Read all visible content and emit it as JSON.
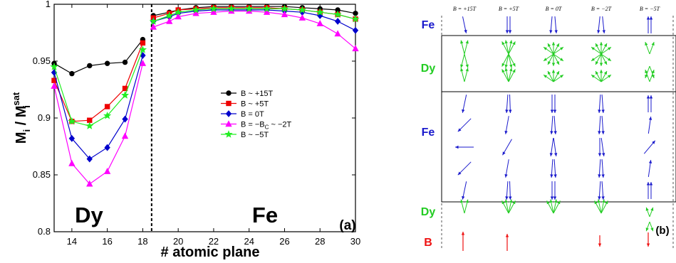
{
  "chart_data": [
    {
      "type": "line",
      "panel_label": "(a)",
      "xlabel": "# atomic plane",
      "ylabel_main": "M",
      "ylabel_sub": "i",
      "ylabel_sep": " / M",
      "ylabel_sup": "sat",
      "ylabel_sub2": "i",
      "xlim": [
        13,
        30
      ],
      "ylim": [
        0.8,
        1.0
      ],
      "x_ticks": [
        14,
        16,
        18,
        20,
        22,
        24,
        26,
        28,
        30
      ],
      "y_ticks": [
        0.8,
        0.85,
        0.9,
        0.95,
        1.0
      ],
      "y_tick_labels": [
        "0.8",
        "0.85",
        "0.9",
        "0.95",
        "1"
      ],
      "divider_x": 18.5,
      "region_labels": {
        "dy": "Dy",
        "fe": "Fe"
      },
      "grid": false,
      "legend_position": "center-right",
      "series": [
        {
          "name": "B ~ +15T",
          "color": "#000000",
          "marker": "circle",
          "x": [
            13,
            14,
            15,
            16,
            17,
            18,
            18.6,
            19.5,
            20,
            21,
            22,
            23,
            24,
            25,
            26,
            27,
            28,
            29,
            30
          ],
          "values": [
            0.948,
            0.939,
            0.946,
            0.948,
            0.949,
            0.969,
            0.99,
            0.993,
            0.995,
            0.997,
            0.998,
            0.998,
            0.998,
            0.998,
            0.998,
            0.997,
            0.996,
            0.995,
            0.992
          ]
        },
        {
          "name": "B ~ +5T",
          "color": "#ee0000",
          "marker": "square",
          "x": [
            13,
            14,
            15,
            16,
            17,
            18,
            18.6,
            19.5,
            20,
            21,
            22,
            23,
            24,
            25,
            26,
            27,
            28,
            29,
            30
          ],
          "values": [
            0.933,
            0.897,
            0.898,
            0.91,
            0.926,
            0.966,
            0.988,
            0.992,
            0.995,
            0.996,
            0.997,
            0.997,
            0.997,
            0.997,
            0.996,
            0.995,
            0.993,
            0.991,
            0.987
          ]
        },
        {
          "name": "B = 0T",
          "color": "#0000cc",
          "marker": "diamond",
          "x": [
            13,
            14,
            15,
            16,
            17,
            18,
            18.6,
            19.5,
            20,
            21,
            22,
            23,
            24,
            25,
            26,
            27,
            28,
            29,
            30
          ],
          "values": [
            0.94,
            0.882,
            0.864,
            0.874,
            0.899,
            0.955,
            0.985,
            0.989,
            0.992,
            0.994,
            0.995,
            0.995,
            0.995,
            0.995,
            0.994,
            0.993,
            0.99,
            0.985,
            0.977
          ]
        },
        {
          "name_prefix": "B = −B",
          "name_sub": "C",
          "name_suffix": " ~ −2T",
          "color": "#ff00ff",
          "marker": "triangle",
          "x": [
            13,
            14,
            15,
            16,
            17,
            18,
            18.6,
            19.5,
            20,
            21,
            22,
            23,
            24,
            25,
            26,
            27,
            28,
            29,
            30
          ],
          "values": [
            0.928,
            0.86,
            0.842,
            0.853,
            0.884,
            0.948,
            0.98,
            0.985,
            0.989,
            0.992,
            0.993,
            0.994,
            0.994,
            0.993,
            0.991,
            0.988,
            0.983,
            0.974,
            0.961
          ]
        },
        {
          "name": "B ~ −5T",
          "color": "#22ee22",
          "marker": "star",
          "x": [
            13,
            14,
            15,
            16,
            17,
            18,
            18.6,
            19.5,
            20,
            21,
            22,
            23,
            24,
            25,
            26,
            27,
            28,
            29,
            30
          ],
          "values": [
            0.945,
            0.897,
            0.893,
            0.902,
            0.92,
            0.96,
            0.985,
            0.99,
            0.993,
            0.995,
            0.996,
            0.996,
            0.996,
            0.996,
            0.996,
            0.995,
            0.993,
            0.991,
            0.987
          ]
        }
      ]
    },
    {
      "type": "diagram",
      "panel_label": "(b)",
      "columns": [
        "B = +15T",
        "B = +5T",
        "B = 0T",
        "B = −2T",
        "B = −5T"
      ],
      "row_labels": {
        "fe_top": "Fe",
        "dy_top": "Dy",
        "fe_mid": "Fe",
        "dy_bottom": "Dy",
        "field": "B"
      },
      "colors": {
        "fe": "#1a1acc",
        "dy": "#22cc22",
        "field": "#ee1111"
      },
      "field_direction": [
        "up",
        "up",
        "none",
        "down",
        "down"
      ]
    }
  ]
}
